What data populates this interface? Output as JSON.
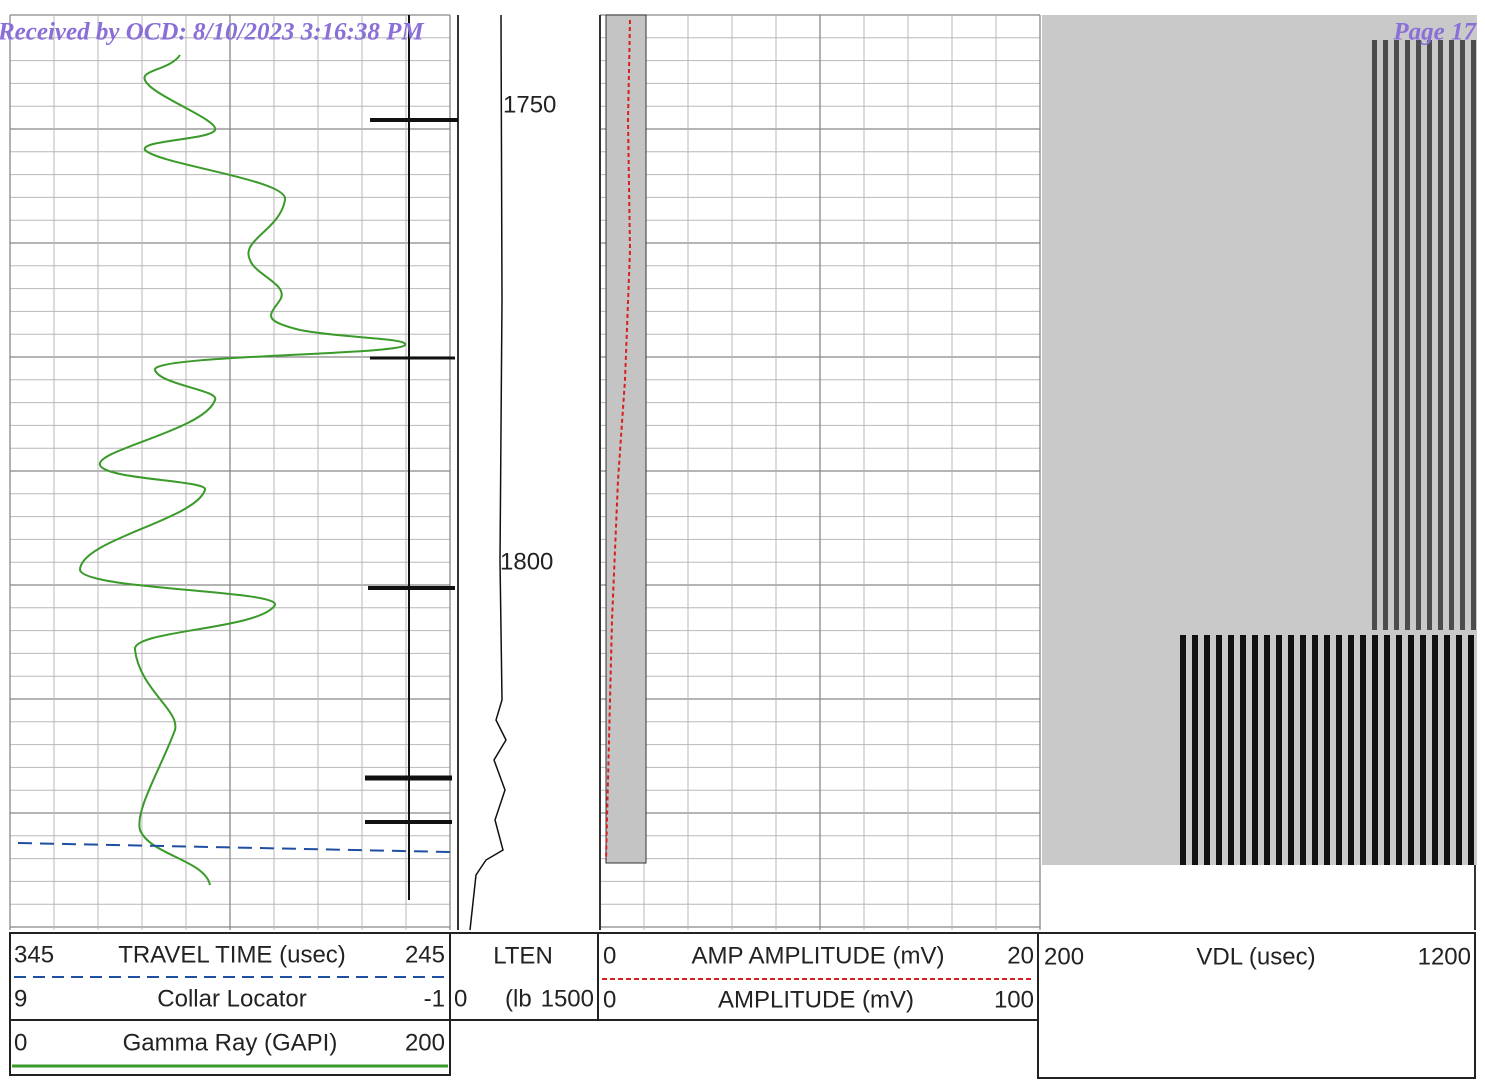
{
  "header": {
    "received": "Received by OCD: 8/10/2023 3:16:38 PM",
    "page": "Page 17"
  },
  "depths": [
    "1750",
    "1800"
  ],
  "legend": {
    "track1": [
      {
        "left": "345",
        "name": "TRAVEL TIME (usec)",
        "right": "245"
      },
      {
        "left": "9",
        "name": "Collar Locator",
        "right": "-1"
      },
      {
        "left": "0",
        "name": "Gamma Ray (GAPI)",
        "right": "200"
      }
    ],
    "track2": {
      "name": "LTEN",
      "left": "0",
      "unit": "(lb",
      "right": "1500"
    },
    "track3": [
      {
        "left": "0",
        "name": "AMP AMPLITUDE (mV)",
        "right": "20"
      },
      {
        "left": "0",
        "name": "AMPLITUDE (mV)",
        "right": "100"
      }
    ],
    "track4": {
      "left": "200",
      "name": "VDL (usec)",
      "right": "1200"
    }
  }
}
